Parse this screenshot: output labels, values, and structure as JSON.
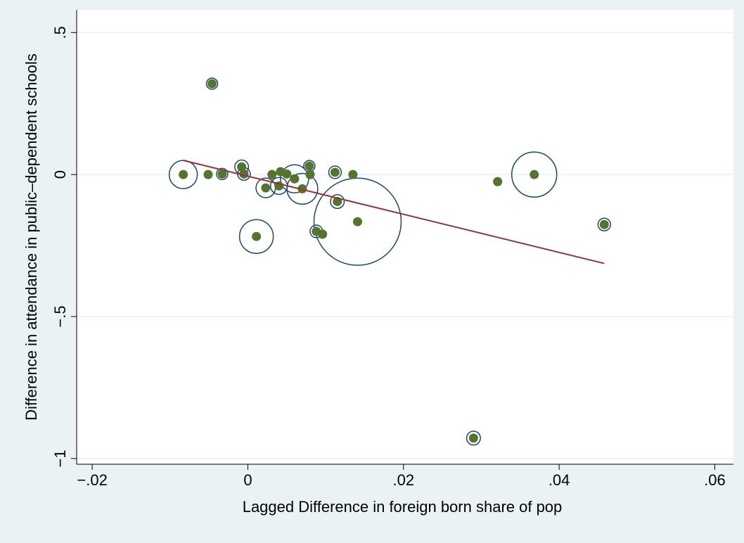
{
  "chart_data": {
    "type": "scatter",
    "x_label": "Lagged Difference in foreign born share of pop",
    "y_label": "Difference in attendance in public–dependent schools",
    "xlim": [
      -0.022,
      0.0624
    ],
    "ylim": [
      -1.02,
      0.58
    ],
    "xticks": [
      {
        "value": -0.02,
        "label": "−.02"
      },
      0,
      {
        "value": 0.02,
        "label": ".02"
      },
      {
        "value": 0.04,
        "label": ".04"
      },
      {
        "value": 0.06,
        "label": ".06"
      }
    ],
    "yticks": [
      {
        "value": -1,
        "label": "−1"
      },
      {
        "value": -0.5,
        "label": "−.5"
      },
      0,
      {
        "value": 0.5,
        "label": ".5"
      }
    ],
    "grid": true,
    "series": [
      {
        "color": "#55752f",
        "ring_color": "#1a476f",
        "x": [
          -0.0083,
          -0.0051,
          -0.0046,
          -0.0033,
          -0.0008,
          -0.0005,
          0.0011,
          0.0023,
          0.0031,
          0.004,
          0.0042,
          0.005,
          0.006,
          0.007,
          0.0079,
          0.008,
          0.0088,
          0.0096,
          0.0112,
          0.0115,
          0.0135,
          0.0141,
          0.029,
          0.0321,
          0.0368,
          0.0458
        ],
        "values": [
          0,
          0,
          0.32,
          0.002,
          0.027,
          0.002,
          -0.218,
          -0.047,
          0,
          -0.04,
          0.01,
          0.002,
          -0.015,
          -0.05,
          0.03,
          0,
          -0.2,
          -0.21,
          0.008,
          -0.095,
          0,
          -0.166,
          -0.928,
          -0.025,
          0,
          -0.176
        ],
        "weights": [
          25,
          2,
          4,
          4,
          6,
          5,
          36,
          12,
          2,
          9,
          2,
          2,
          25,
          30,
          4,
          2,
          5,
          2,
          5,
          6,
          2,
          240,
          6,
          2,
          64,
          5
        ]
      }
    ],
    "fit": {
      "color": "#90353b",
      "x": [
        -0.0083,
        0.0458
      ],
      "values": [
        0.05,
        -0.313
      ]
    }
  }
}
